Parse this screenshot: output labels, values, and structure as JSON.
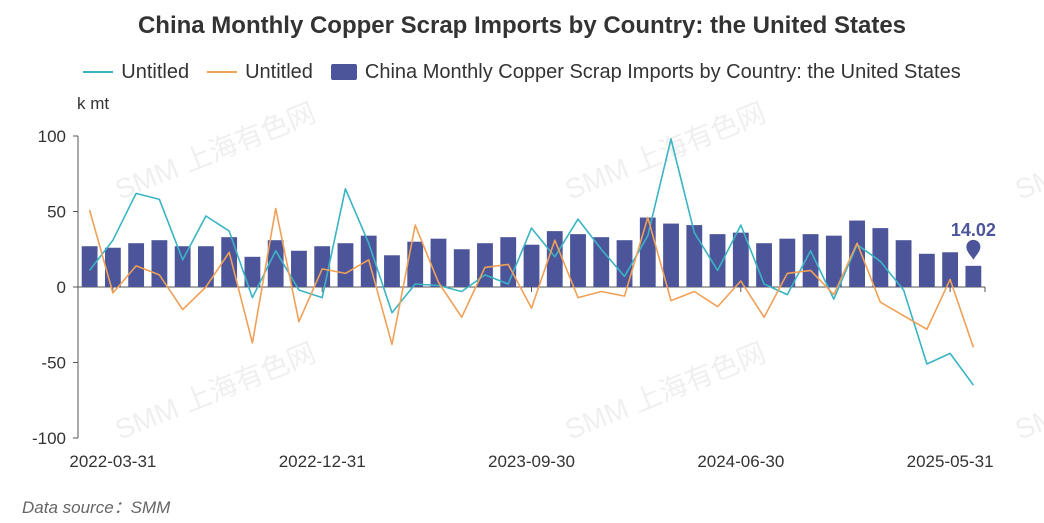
{
  "header": {
    "title": "China Monthly Copper Scrap Imports by Country: the United States"
  },
  "legend": {
    "items": [
      {
        "label": "Untitled",
        "color": "#3ab4c4",
        "shape": "line"
      },
      {
        "label": "Untitled",
        "color": "#f0a057",
        "shape": "line"
      },
      {
        "label": "China Monthly Copper Scrap Imports by Country: the United States",
        "color": "#4c5599",
        "shape": "rect"
      }
    ]
  },
  "axis": {
    "unit": "k mt"
  },
  "footer": {
    "source": "Data source：SMM"
  },
  "watermark": {
    "text": "SMM 上海有色网"
  },
  "chart_data": {
    "type": "bar",
    "x_tick_labels": [
      "2022-03-31",
      "2022-12-31",
      "2023-09-30",
      "2024-06-30",
      "2025-05-31"
    ],
    "x_tick_indices": [
      1,
      10,
      19,
      28,
      37
    ],
    "ylim": [
      -100,
      100
    ],
    "y_ticks": [
      -100,
      -50,
      0,
      50,
      100
    ],
    "bar_label": {
      "index": 38,
      "text": "14.02"
    },
    "series": [
      {
        "name": "China Monthly Copper Scrap Imports by Country: the United States",
        "type": "bar",
        "color": "#4c5599",
        "values": [
          27,
          26,
          29,
          31,
          27,
          27,
          33,
          20,
          31,
          24,
          27,
          29,
          34,
          21,
          30,
          32,
          25,
          29,
          33,
          28,
          37,
          35,
          33,
          31,
          46,
          42,
          41,
          35,
          36,
          29,
          32,
          35,
          34,
          44,
          39,
          31,
          22,
          23,
          14.02
        ]
      },
      {
        "name": "Untitled",
        "type": "line",
        "color": "#3ab4c4",
        "values": [
          11,
          31,
          62,
          58,
          18,
          47,
          37,
          -7,
          24,
          -2,
          -7,
          65,
          29,
          -17,
          2,
          1,
          -3,
          8,
          2,
          39,
          20,
          45,
          25,
          7,
          34,
          98,
          36,
          11,
          41,
          2,
          -5,
          24,
          -8,
          28,
          17,
          -2,
          -51,
          -44,
          -65
        ]
      },
      {
        "name": "Untitled",
        "type": "line",
        "color": "#f0a057",
        "values": [
          51,
          -4,
          14,
          8,
          -15,
          0,
          23,
          -37,
          52,
          -23,
          12,
          9,
          18,
          -38,
          41,
          3,
          -20,
          13,
          15,
          -14,
          31,
          -7,
          -3,
          -6,
          46,
          -9,
          -3,
          -13,
          4,
          -20,
          9,
          11,
          -5,
          29,
          -10,
          -19,
          -28,
          5,
          -40
        ]
      }
    ]
  }
}
